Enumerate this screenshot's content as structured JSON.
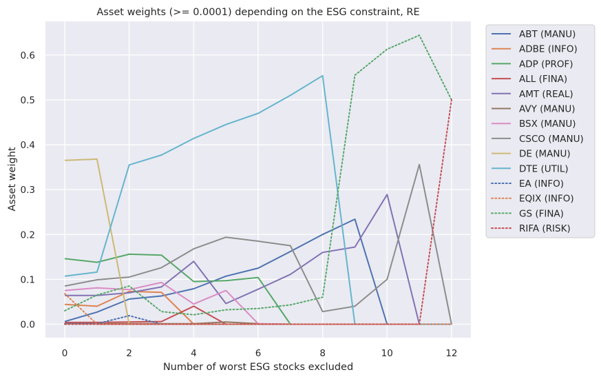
{
  "chart_data": {
    "type": "line",
    "title": "Asset weights (>= 0.0001) depending on the ESG constraint, RE",
    "xlabel": "Number of worst ESG stocks excluded",
    "ylabel": "Asset weight",
    "xlim": [
      -0.6,
      12.6
    ],
    "ylim": [
      -0.03,
      0.675
    ],
    "xticks": [
      0,
      2,
      4,
      6,
      8,
      10,
      12
    ],
    "xtick_labels": [
      "0",
      "2",
      "4",
      "6",
      "8",
      "10",
      "12"
    ],
    "yticks": [
      0.0,
      0.1,
      0.2,
      0.3,
      0.4,
      0.5,
      0.6
    ],
    "ytick_labels": [
      "0.0",
      "0.1",
      "0.2",
      "0.3",
      "0.4",
      "0.5",
      "0.6"
    ],
    "grid": true,
    "legend_position": "outside-right",
    "x": [
      0,
      1,
      2,
      3,
      4,
      5,
      6,
      7,
      8,
      9,
      10,
      11,
      12
    ],
    "series": [
      {
        "name": "ABT (MANU)",
        "color": "#4c72b0",
        "style": "solid",
        "values": [
          0.006,
          0.027,
          0.056,
          0.063,
          0.079,
          0.107,
          0.125,
          0.162,
          0.2,
          0.234,
          0.0,
          0.0,
          0.0
        ]
      },
      {
        "name": "ADBE (INFO)",
        "color": "#dd8452",
        "style": "solid",
        "values": [
          0.044,
          0.04,
          0.073,
          0.071,
          0.0,
          0.0,
          0.0,
          0.0,
          0.0,
          0.0,
          0.0,
          0.0,
          0.0
        ]
      },
      {
        "name": "ADP (PROF)",
        "color": "#55a868",
        "style": "solid",
        "values": [
          0.146,
          0.138,
          0.156,
          0.154,
          0.095,
          0.097,
          0.104,
          0.0,
          0.0,
          0.0,
          0.0,
          0.0,
          0.0
        ]
      },
      {
        "name": "ALL (FINA)",
        "color": "#c44e52",
        "style": "solid",
        "values": [
          0.004,
          0.004,
          0.005,
          0.006,
          0.04,
          0.0,
          0.0,
          0.0,
          0.0,
          0.0,
          0.0,
          0.0,
          0.0
        ]
      },
      {
        "name": "AMT (REAL)",
        "color": "#8172b3",
        "style": "solid",
        "values": [
          0.064,
          0.064,
          0.07,
          0.083,
          0.14,
          0.046,
          0.078,
          0.111,
          0.16,
          0.172,
          0.289,
          0.0,
          0.0
        ]
      },
      {
        "name": "AVY (MANU)",
        "color": "#937860",
        "style": "solid",
        "values": [
          0.001,
          0.001,
          0.001,
          0.001,
          0.001,
          0.005,
          0.001,
          0.0,
          0.0,
          0.0,
          0.0,
          0.0,
          0.0
        ]
      },
      {
        "name": "BSX (MANU)",
        "color": "#da8bc3",
        "style": "solid",
        "values": [
          0.075,
          0.081,
          0.077,
          0.093,
          0.045,
          0.075,
          0.001,
          0.0,
          0.0,
          0.0,
          0.0,
          0.0,
          0.0
        ]
      },
      {
        "name": "CSCO (MANU)",
        "color": "#8c8c8c",
        "style": "solid",
        "values": [
          0.085,
          0.099,
          0.105,
          0.126,
          0.168,
          0.194,
          0.185,
          0.175,
          0.028,
          0.04,
          0.1,
          0.356,
          0.0
        ]
      },
      {
        "name": "DE (MANU)",
        "color": "#ccb974",
        "style": "solid",
        "values": [
          0.365,
          0.368,
          0.0,
          0.0,
          0.0,
          0.0,
          0.0,
          0.0,
          0.0,
          0.0,
          0.0,
          0.0,
          0.0
        ]
      },
      {
        "name": "DTE (UTIL)",
        "color": "#64b5cd",
        "style": "solid",
        "values": [
          0.107,
          0.116,
          0.355,
          0.377,
          0.414,
          0.445,
          0.47,
          0.51,
          0.554,
          0.0,
          0.0,
          0.0,
          0.0
        ]
      },
      {
        "name": "EA (INFO)",
        "color": "#4c72b0",
        "style": "dotted",
        "values": [
          0.001,
          0.001,
          0.019,
          0.0,
          0.0,
          0.0,
          0.0,
          0.0,
          0.0,
          0.0,
          0.0,
          0.0,
          0.0
        ]
      },
      {
        "name": "EQIX (INFO)",
        "color": "#dd8452",
        "style": "dotted",
        "values": [
          0.068,
          0.0,
          0.0,
          0.0,
          0.0,
          0.0,
          0.0,
          0.0,
          0.0,
          0.0,
          0.0,
          0.0,
          0.0
        ]
      },
      {
        "name": "GS (FINA)",
        "color": "#55a868",
        "style": "dotted",
        "values": [
          0.03,
          0.065,
          0.085,
          0.028,
          0.021,
          0.032,
          0.035,
          0.043,
          0.06,
          0.555,
          0.613,
          0.644,
          0.5
        ]
      },
      {
        "name": "RIFA (RISK)",
        "color": "#c44e52",
        "style": "dotted",
        "values": [
          0.0,
          0.0,
          0.0,
          0.0,
          0.0,
          0.0,
          0.0,
          0.0,
          0.0,
          0.0,
          0.0,
          0.0,
          0.5
        ]
      }
    ]
  }
}
